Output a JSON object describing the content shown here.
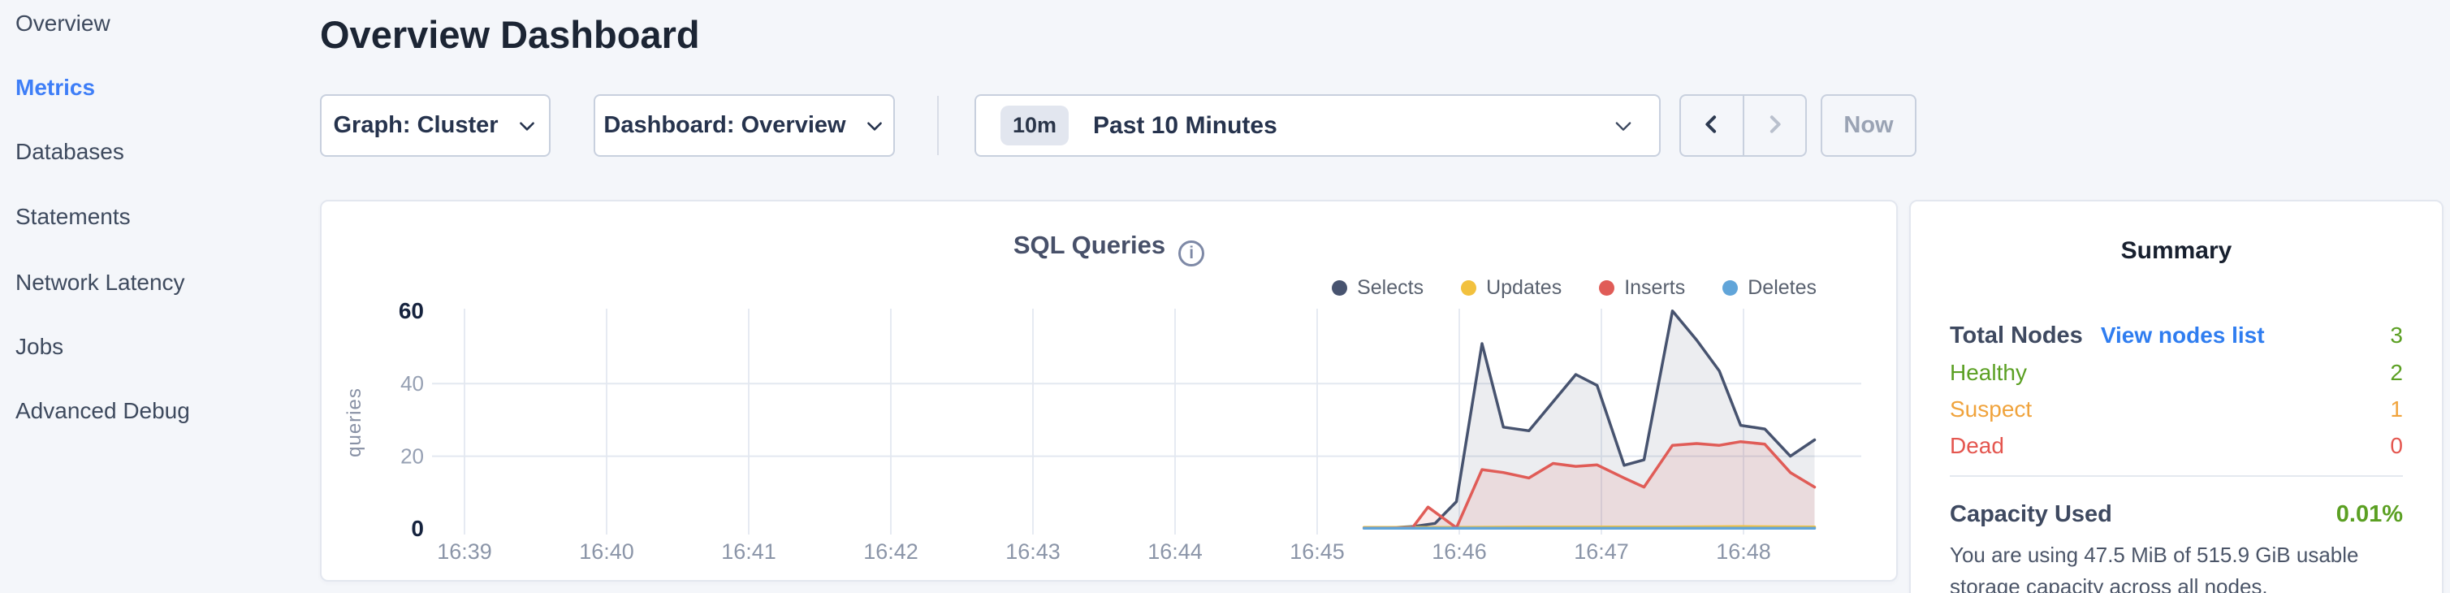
{
  "sidebar": {
    "items": [
      {
        "label": "Overview",
        "active": false
      },
      {
        "label": "Metrics",
        "active": true
      },
      {
        "label": "Databases",
        "active": false
      },
      {
        "label": "Statements",
        "active": false
      },
      {
        "label": "Network Latency",
        "active": false
      },
      {
        "label": "Jobs",
        "active": false
      },
      {
        "label": "Advanced Debug",
        "active": false
      }
    ],
    "active_color": "#3e7ef7"
  },
  "header": {
    "title": "Overview Dashboard"
  },
  "toolbar": {
    "graph_label": "Graph: Cluster",
    "dashboard_label": "Dashboard: Overview",
    "time_badge": "10m",
    "time_label": "Past 10 Minutes",
    "now_label": "Now"
  },
  "chart_data": {
    "type": "line",
    "title": "SQL Queries",
    "ylabel": "queries",
    "xlabel": "",
    "ylim": [
      0,
      60
    ],
    "y_ticks": [
      0,
      20,
      40,
      60
    ],
    "y_ticks_emphasized": [
      0,
      60
    ],
    "grid": true,
    "legend_position": "top-right",
    "x_ticks": [
      "16:39",
      "16:40",
      "16:41",
      "16:42",
      "16:43",
      "16:44",
      "16:45",
      "16:46",
      "16:47",
      "16:48"
    ],
    "x_unit": "minutes after 16:00",
    "series": [
      {
        "name": "Selects",
        "color": "#47536f",
        "fill": "rgba(71,83,111,0.10)",
        "points": [
          [
            45.33,
            0.3
          ],
          [
            45.5,
            0.3
          ],
          [
            45.67,
            0.6
          ],
          [
            45.83,
            1.5
          ],
          [
            45.98,
            7.5
          ],
          [
            46.16,
            51
          ],
          [
            46.31,
            28
          ],
          [
            46.49,
            27
          ],
          [
            46.66,
            35
          ],
          [
            46.82,
            42.5
          ],
          [
            46.97,
            39.5
          ],
          [
            47.16,
            17.5
          ],
          [
            47.3,
            19
          ],
          [
            47.5,
            60
          ],
          [
            47.67,
            52
          ],
          [
            47.83,
            43.5
          ],
          [
            47.98,
            28.5
          ],
          [
            48.15,
            27.5
          ],
          [
            48.33,
            20
          ],
          [
            48.5,
            24.5
          ]
        ]
      },
      {
        "name": "Updates",
        "color": "#f2c13e",
        "fill": "none",
        "points": [
          [
            45.33,
            0.4
          ],
          [
            46,
            0.4
          ],
          [
            46.5,
            0.5
          ],
          [
            47,
            0.5
          ],
          [
            47.5,
            0.5
          ],
          [
            48,
            0.6
          ],
          [
            48.5,
            0.5
          ]
        ]
      },
      {
        "name": "Inserts",
        "color": "#e05c57",
        "fill": "rgba(224,92,87,0.12)",
        "points": [
          [
            45.33,
            0.2
          ],
          [
            45.5,
            0.2
          ],
          [
            45.67,
            0.3
          ],
          [
            45.78,
            6
          ],
          [
            45.98,
            0.3
          ],
          [
            46.16,
            16.3
          ],
          [
            46.31,
            15.5
          ],
          [
            46.49,
            14
          ],
          [
            46.66,
            18
          ],
          [
            46.82,
            17.2
          ],
          [
            46.97,
            17.6
          ],
          [
            47.16,
            14
          ],
          [
            47.3,
            11.5
          ],
          [
            47.5,
            23
          ],
          [
            47.67,
            23.5
          ],
          [
            47.83,
            23
          ],
          [
            47.98,
            24
          ],
          [
            48.15,
            23.3
          ],
          [
            48.33,
            15.5
          ],
          [
            48.5,
            11.5
          ]
        ]
      },
      {
        "name": "Deletes",
        "color": "#61a5d9",
        "fill": "none",
        "points": [
          [
            45.33,
            0.15
          ],
          [
            46,
            0.15
          ],
          [
            47,
            0.15
          ],
          [
            48,
            0.15
          ],
          [
            48.5,
            0.15
          ]
        ]
      }
    ]
  },
  "summary": {
    "title": "Summary",
    "total_nodes": {
      "label": "Total Nodes",
      "link": "View nodes list",
      "value": "3"
    },
    "rows": [
      {
        "label": "Healthy",
        "value": "2",
        "color": "#5ba023"
      },
      {
        "label": "Suspect",
        "value": "1",
        "color": "#f0a33c"
      },
      {
        "label": "Dead",
        "value": "0",
        "color": "#e4564f"
      }
    ],
    "capacity": {
      "label": "Capacity Used",
      "value": "0.01%",
      "description": "You are using 47.5 MiB of 515.9 GiB usable storage capacity across all nodes."
    }
  },
  "colors": {
    "page_background": "#f4f6fa",
    "accent_blue": "#2f7df0",
    "healthy_green": "#5ba023",
    "suspect_orange": "#f0a33c",
    "dead_red": "#e4564f",
    "grid_line": "#e6eaf2"
  }
}
